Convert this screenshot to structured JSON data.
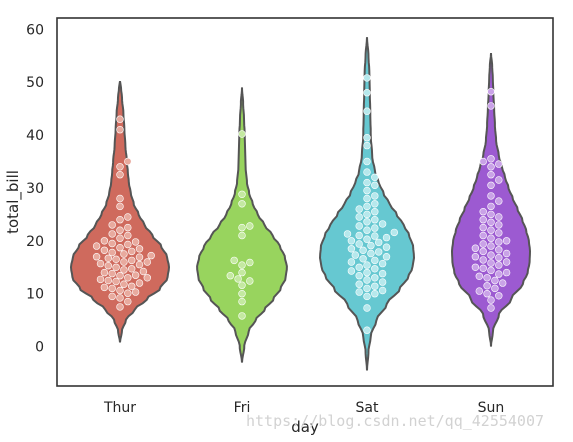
{
  "chart_data": {
    "type": "violin",
    "overlay": "swarm",
    "categories": [
      "Thur",
      "Fri",
      "Sat",
      "Sun"
    ],
    "xlabel": "day",
    "ylabel": "total_bill",
    "ylim": [
      -8,
      63
    ],
    "yticks": [
      0,
      10,
      20,
      30,
      40,
      50,
      60
    ],
    "grid": false,
    "colors": {
      "violin": [
        "#cf6a5d",
        "#98d45e",
        "#66c8d1",
        "#9c5ad1"
      ],
      "points": [
        "#e8aa9e",
        "#c4e9a1",
        "#b6e8ec",
        "#c9a2e7"
      ],
      "outline": "#555555"
    },
    "series": [
      {
        "category": "Thur",
        "range": [
          0.8,
          50.2
        ],
        "points": [
          7.5,
          8.5,
          9.2,
          9.5,
          10.1,
          10.3,
          10.6,
          11.0,
          11.2,
          11.4,
          11.8,
          12.0,
          12.3,
          12.5,
          12.7,
          13.0,
          13.0,
          13.4,
          13.5,
          13.8,
          14.0,
          14.2,
          14.5,
          14.7,
          15.0,
          15.3,
          15.5,
          15.7,
          16.0,
          16.0,
          16.3,
          16.5,
          16.7,
          16.9,
          17.0,
          17.2,
          17.5,
          17.8,
          18.0,
          18.2,
          18.5,
          18.7,
          19.0,
          19.3,
          19.5,
          19.8,
          20.0,
          20.5,
          21.0,
          21.3,
          22.0,
          22.5,
          23.0,
          24.0,
          24.5,
          26.5,
          28.0,
          32.5,
          34.0,
          35.0,
          41.0,
          43.0
        ],
        "density": [
          [
            0.8,
            0
          ],
          [
            3,
            0.04
          ],
          [
            5,
            0.12
          ],
          [
            7,
            0.3
          ],
          [
            9,
            0.55
          ],
          [
            11,
            0.82
          ],
          [
            13,
            0.97
          ],
          [
            15,
            1.0
          ],
          [
            17,
            0.96
          ],
          [
            19,
            0.84
          ],
          [
            21,
            0.66
          ],
          [
            23,
            0.5
          ],
          [
            25,
            0.38
          ],
          [
            27,
            0.28
          ],
          [
            29,
            0.22
          ],
          [
            31,
            0.18
          ],
          [
            33,
            0.16
          ],
          [
            35,
            0.14
          ],
          [
            38,
            0.11
          ],
          [
            41,
            0.09
          ],
          [
            44,
            0.07
          ],
          [
            47,
            0.04
          ],
          [
            49,
            0.02
          ],
          [
            50.2,
            0
          ]
        ]
      },
      {
        "category": "Fri",
        "range": [
          -3.0,
          49.0
        ],
        "points": [
          5.8,
          8.5,
          10.0,
          11.6,
          12.4,
          12.8,
          13.4,
          14.0,
          15.4,
          15.9,
          16.3,
          21.0,
          22.8,
          22.5,
          27.0,
          28.8,
          40.2
        ],
        "density": [
          [
            -3,
            0
          ],
          [
            0,
            0.05
          ],
          [
            3,
            0.15
          ],
          [
            5,
            0.3
          ],
          [
            7,
            0.5
          ],
          [
            9,
            0.7
          ],
          [
            11,
            0.86
          ],
          [
            13,
            0.97
          ],
          [
            15,
            1.0
          ],
          [
            17,
            0.95
          ],
          [
            19,
            0.84
          ],
          [
            21,
            0.68
          ],
          [
            23,
            0.5
          ],
          [
            25,
            0.35
          ],
          [
            27,
            0.24
          ],
          [
            29,
            0.16
          ],
          [
            31,
            0.11
          ],
          [
            34,
            0.08
          ],
          [
            37,
            0.07
          ],
          [
            40,
            0.06
          ],
          [
            43,
            0.045
          ],
          [
            46,
            0.025
          ],
          [
            49,
            0
          ]
        ]
      },
      {
        "category": "Sat",
        "range": [
          -4.5,
          58.5
        ],
        "points": [
          3.1,
          7.3,
          9.5,
          10.0,
          10.3,
          10.6,
          11.0,
          11.4,
          11.8,
          12.2,
          12.6,
          13.0,
          13.4,
          13.8,
          14.0,
          14.3,
          14.7,
          15.0,
          15.4,
          15.7,
          16.0,
          16.3,
          16.6,
          17.0,
          17.3,
          17.6,
          17.9,
          18.2,
          18.5,
          18.8,
          19.1,
          19.4,
          19.7,
          20.0,
          20.3,
          20.6,
          20.9,
          21.0,
          21.3,
          21.6,
          22.0,
          22.4,
          22.8,
          23.2,
          23.6,
          24.0,
          24.5,
          25.0,
          25.5,
          26.0,
          26.5,
          27.0,
          28.0,
          28.5,
          29.5,
          30.5,
          31.0,
          32.0,
          33.0,
          35.0,
          38.0,
          39.5,
          44.5,
          48.0,
          50.8
        ],
        "density": [
          [
            -4.5,
            0
          ],
          [
            -1,
            0.03
          ],
          [
            2,
            0.08
          ],
          [
            5,
            0.2
          ],
          [
            8,
            0.42
          ],
          [
            11,
            0.7
          ],
          [
            13,
            0.87
          ],
          [
            15,
            0.97
          ],
          [
            17,
            1.0
          ],
          [
            19,
            0.98
          ],
          [
            21,
            0.9
          ],
          [
            23,
            0.78
          ],
          [
            25,
            0.63
          ],
          [
            27,
            0.48
          ],
          [
            29,
            0.35
          ],
          [
            31,
            0.25
          ],
          [
            33,
            0.17
          ],
          [
            36,
            0.11
          ],
          [
            40,
            0.08
          ],
          [
            44,
            0.07
          ],
          [
            48,
            0.06
          ],
          [
            52,
            0.05
          ],
          [
            55,
            0.03
          ],
          [
            58.5,
            0
          ]
        ]
      },
      {
        "category": "Sun",
        "range": [
          0.0,
          55.5
        ],
        "points": [
          7.3,
          8.8,
          9.6,
          10.0,
          10.5,
          11.0,
          11.5,
          12.0,
          12.5,
          13.0,
          13.3,
          13.7,
          14.0,
          14.4,
          14.8,
          15.0,
          15.4,
          15.8,
          16.0,
          16.4,
          16.8,
          17.0,
          17.3,
          17.6,
          18.0,
          18.3,
          18.6,
          19.0,
          19.4,
          19.8,
          20.0,
          20.5,
          21.0,
          21.5,
          22.0,
          22.5,
          23.0,
          23.5,
          24.0,
          24.5,
          25.0,
          25.5,
          26.5,
          27.5,
          28.5,
          30.5,
          31.5,
          32.5,
          34.0,
          34.5,
          35.0,
          35.5,
          45.5,
          48.2
        ],
        "density": [
          [
            0,
            0
          ],
          [
            3,
            0.05
          ],
          [
            6,
            0.2
          ],
          [
            9,
            0.52
          ],
          [
            12,
            0.82
          ],
          [
            14,
            0.94
          ],
          [
            16,
            0.99
          ],
          [
            18,
            1.0
          ],
          [
            20,
            0.97
          ],
          [
            22,
            0.9
          ],
          [
            24,
            0.8
          ],
          [
            26,
            0.68
          ],
          [
            28,
            0.56
          ],
          [
            30,
            0.45
          ],
          [
            32,
            0.36
          ],
          [
            34,
            0.28
          ],
          [
            36,
            0.2
          ],
          [
            39,
            0.13
          ],
          [
            42,
            0.1
          ],
          [
            45,
            0.08
          ],
          [
            48,
            0.06
          ],
          [
            51,
            0.045
          ],
          [
            53,
            0.03
          ],
          [
            55.5,
            0
          ]
        ]
      }
    ]
  },
  "watermark": "https://blog.csdn.net/qq_42554007"
}
